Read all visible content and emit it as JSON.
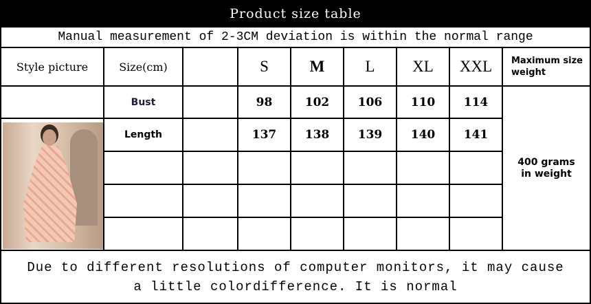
{
  "title": "Product size table",
  "subtitle": "Manual measurement of 2-3CM deviation is within the normal range",
  "header": {
    "style_picture": "Style picture",
    "size_cm": "Size(cm)",
    "sizes": [
      "S",
      "M",
      "L",
      "XL",
      "XXL"
    ],
    "max_weight": "Maximum size weight"
  },
  "rows": [
    {
      "label": "Bust",
      "values": [
        "98",
        "102",
        "106",
        "110",
        "114"
      ]
    },
    {
      "label": "Length",
      "values": [
        "137",
        "138",
        "139",
        "140",
        "141"
      ]
    }
  ],
  "weight_note": "400 grams in weight",
  "footer": "Due to different resolutions of computer monitors, it may cause a little  colordifference. It is normal"
}
